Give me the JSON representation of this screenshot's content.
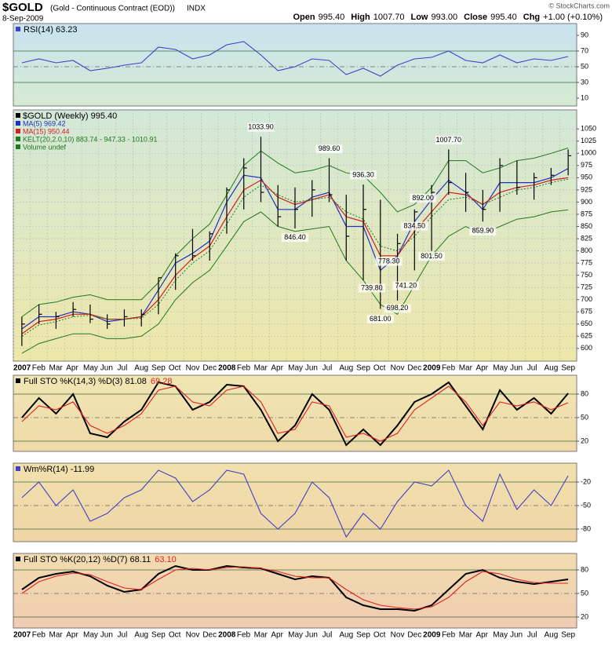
{
  "header": {
    "symbol": "$GOLD",
    "name": "(Gold - Continuous Contract (EOD))",
    "exchange": "INDX",
    "date": "8-Sep-2009",
    "quote": [
      {
        "label": "Open",
        "value": "995.40"
      },
      {
        "label": "High",
        "value": "1007.70"
      },
      {
        "label": "Low",
        "value": "993.00"
      },
      {
        "label": "Close",
        "value": "995.40"
      },
      {
        "label": "Chg",
        "value": "+1.00 (+0.10%)"
      }
    ],
    "copyright": "© StockCharts.com"
  },
  "chart_data": [
    {
      "type": "line",
      "ylim": [
        0,
        105
      ],
      "yticks": [
        10,
        30,
        50,
        70,
        90
      ],
      "reference_lines": [
        30,
        50,
        70
      ],
      "series": [
        {
          "name": "RSI(14) 63.23",
          "color": "#4040c8",
          "values": [
            55,
            60,
            55,
            58,
            45,
            48,
            52,
            55,
            75,
            72,
            60,
            65,
            78,
            82,
            65,
            45,
            50,
            60,
            58,
            40,
            48,
            38,
            52,
            60,
            62,
            70,
            58,
            55,
            65,
            55,
            60,
            58,
            63
          ]
        }
      ]
    },
    {
      "type": "ohlc",
      "ylim": [
        574,
        1089
      ],
      "yticks": [
        600,
        625,
        650,
        675,
        700,
        725,
        750,
        775,
        800,
        825,
        850,
        875,
        900,
        925,
        950,
        975,
        1000,
        1025,
        1050
      ],
      "grid": true,
      "categories": [
        "2007",
        "Feb",
        "Mar",
        "Apr",
        "May",
        "Jun",
        "Jul",
        "Aug",
        "Sep",
        "Oct",
        "Nov",
        "Dec",
        "2008",
        "Feb",
        "Mar",
        "Apr",
        "May",
        "Jun",
        "Jul",
        "Aug",
        "Sep",
        "Oct",
        "Nov",
        "Dec",
        "2009",
        "Feb",
        "Mar",
        "Apr",
        "May",
        "Jun",
        "Jul",
        "Aug",
        "Sep"
      ],
      "price": {
        "name": "$GOLD (Weekly) 995.40",
        "color": "#000000",
        "high": [
          665,
          690,
          675,
          695,
          690,
          670,
          680,
          680,
          745,
          795,
          845,
          840,
          930,
          990,
          1034,
          935,
          930,
          945,
          990,
          915,
          936,
          905,
          835,
          885,
          935,
          1008,
          960,
          925,
          990,
          985,
          960,
          970,
          1008
        ],
        "low": [
          605,
          650,
          640,
          665,
          652,
          640,
          645,
          645,
          670,
          720,
          780,
          780,
          835,
          885,
          900,
          850,
          846,
          870,
          900,
          780,
          740,
          681,
          698,
          760,
          800,
          915,
          880,
          860,
          880,
          915,
          905,
          935,
          955
        ],
        "close": [
          650,
          670,
          665,
          680,
          660,
          650,
          665,
          670,
          745,
          790,
          790,
          835,
          925,
          970,
          920,
          870,
          885,
          925,
          915,
          830,
          885,
          720,
          815,
          880,
          920,
          940,
          920,
          885,
          975,
          930,
          950,
          955,
          995
        ]
      },
      "series": [
        {
          "name": "MA(5) 969.42",
          "color": "#2030c0",
          "values": [
            640,
            665,
            665,
            675,
            670,
            655,
            660,
            665,
            720,
            775,
            795,
            820,
            900,
            955,
            950,
            885,
            885,
            910,
            920,
            850,
            850,
            760,
            790,
            860,
            905,
            945,
            920,
            885,
            940,
            940,
            940,
            950,
            969
          ]
        },
        {
          "name": "MA(15) 950.44",
          "color": "#d02020",
          "values": [
            630,
            655,
            660,
            670,
            670,
            660,
            660,
            665,
            700,
            750,
            785,
            810,
            870,
            925,
            945,
            910,
            895,
            905,
            915,
            870,
            860,
            790,
            790,
            840,
            880,
            920,
            915,
            895,
            920,
            930,
            935,
            945,
            950
          ]
        },
        {
          "name": "KELT(20,2.0,10) 883.74 - 947.33 - 1010.91",
          "color": "#1f7a1f",
          "values": [
            625,
            648,
            655,
            665,
            668,
            660,
            660,
            662,
            690,
            740,
            775,
            800,
            855,
            910,
            935,
            915,
            900,
            905,
            910,
            880,
            865,
            810,
            800,
            830,
            870,
            905,
            910,
            895,
            910,
            925,
            930,
            940,
            947
          ],
          "upper": [
            665,
            690,
            695,
            705,
            710,
            700,
            700,
            700,
            735,
            790,
            825,
            855,
            915,
            975,
            1005,
            980,
            960,
            965,
            975,
            960,
            955,
            920,
            880,
            895,
            930,
            985,
            985,
            960,
            970,
            985,
            990,
            1000,
            1011
          ],
          "lower": [
            590,
            610,
            620,
            630,
            630,
            620,
            620,
            625,
            650,
            700,
            735,
            760,
            810,
            860,
            880,
            850,
            840,
            845,
            850,
            780,
            740,
            690,
            670,
            730,
            790,
            830,
            850,
            835,
            850,
            865,
            870,
            880,
            884
          ]
        }
      ],
      "legend_extra": "Volume undef",
      "annotations": [
        {
          "value": 1033.9,
          "label": "1033.90"
        },
        {
          "value": 989.6,
          "label": "989.60"
        },
        {
          "value": 846.4,
          "label": "846.40"
        },
        {
          "value": 936.3,
          "label": "936.30"
        },
        {
          "value": 1007.7,
          "label": "1007.70"
        },
        {
          "value": 892,
          "label": "892.00"
        },
        {
          "value": 834.5,
          "label": "834.50"
        },
        {
          "value": 778.3,
          "label": "778.30"
        },
        {
          "value": 739.8,
          "label": "739.80"
        },
        {
          "value": 698.2,
          "label": "698.20"
        },
        {
          "value": 681,
          "label": "681.00"
        },
        {
          "value": 741.2,
          "label": "741.20"
        },
        {
          "value": 801.5,
          "label": "801.50"
        },
        {
          "value": 859.9,
          "label": "859.90"
        }
      ]
    },
    {
      "type": "line",
      "ylim": [
        7,
        104
      ],
      "yticks": [
        20,
        50,
        80
      ],
      "reference_lines": [
        20,
        50,
        80
      ],
      "series": [
        {
          "name": "Full STO %K(14,3) %D(3) 81.08",
          "color": "#000000",
          "values": [
            50,
            75,
            55,
            80,
            30,
            25,
            45,
            60,
            95,
            90,
            60,
            70,
            92,
            90,
            60,
            20,
            40,
            80,
            60,
            15,
            35,
            15,
            40,
            70,
            80,
            95,
            65,
            35,
            85,
            60,
            75,
            55,
            81
          ]
        },
        {
          "name": "69.28",
          "color": "#e02020",
          "values": [
            45,
            65,
            60,
            70,
            40,
            30,
            40,
            55,
            85,
            90,
            70,
            65,
            85,
            90,
            70,
            30,
            35,
            70,
            65,
            25,
            30,
            20,
            30,
            60,
            75,
            90,
            70,
            40,
            70,
            65,
            70,
            60,
            69
          ]
        }
      ]
    },
    {
      "type": "line",
      "ylim": [
        -96,
        4
      ],
      "yticks": [
        -20,
        -50,
        -80
      ],
      "reference_lines": [
        -20,
        -50,
        -80
      ],
      "series": [
        {
          "name": "Wm%R(14) -11.99",
          "color": "#4040c8",
          "values": [
            -40,
            -20,
            -50,
            -30,
            -70,
            -60,
            -40,
            -30,
            -5,
            -15,
            -45,
            -30,
            -5,
            -10,
            -60,
            -80,
            -60,
            -20,
            -40,
            -90,
            -60,
            -80,
            -45,
            -20,
            -25,
            -5,
            -50,
            -70,
            -10,
            -55,
            -30,
            -50,
            -12
          ]
        }
      ]
    },
    {
      "type": "line",
      "ylim": [
        6,
        101
      ],
      "yticks": [
        20,
        50,
        80
      ],
      "reference_lines": [
        20,
        50,
        80
      ],
      "categories": [
        "2007",
        "Feb",
        "Mar",
        "Apr",
        "May",
        "Jun",
        "Jul",
        "Aug",
        "Sep",
        "Oct",
        "Nov",
        "Dec",
        "2008",
        "Feb",
        "Mar",
        "Apr",
        "May",
        "Jun",
        "Jul",
        "Aug",
        "Sep",
        "Oct",
        "Nov",
        "Dec",
        "2009",
        "Feb",
        "Mar",
        "Apr",
        "May",
        "Jun",
        "Jul",
        "Aug",
        "Sep"
      ],
      "series": [
        {
          "name": "Full STO %K(20,12) %D(7) 68.11",
          "color": "#000000",
          "values": [
            55,
            70,
            75,
            78,
            72,
            60,
            52,
            55,
            75,
            85,
            80,
            80,
            85,
            83,
            82,
            75,
            68,
            72,
            70,
            45,
            35,
            30,
            30,
            28,
            35,
            55,
            75,
            80,
            70,
            65,
            62,
            65,
            68
          ]
        },
        {
          "name": "63.10",
          "color": "#e02020",
          "values": [
            50,
            65,
            72,
            76,
            74,
            65,
            57,
            55,
            68,
            80,
            82,
            80,
            83,
            84,
            82,
            78,
            72,
            70,
            70,
            55,
            42,
            35,
            32,
            30,
            33,
            45,
            65,
            78,
            75,
            68,
            64,
            63,
            63
          ]
        }
      ]
    }
  ]
}
